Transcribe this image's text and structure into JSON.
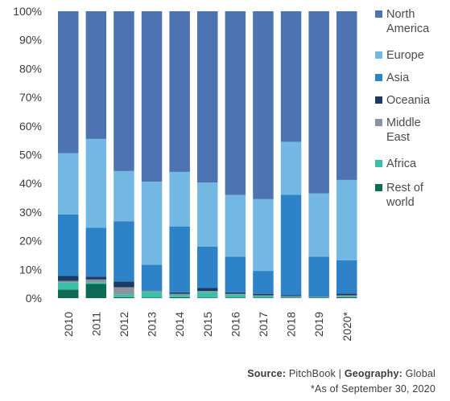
{
  "chart_data": {
    "type": "bar",
    "stacked": true,
    "percent": true,
    "categories": [
      "2010",
      "2011",
      "2012",
      "2013",
      "2014",
      "2015",
      "2016",
      "2017",
      "2018",
      "2019",
      "2020*"
    ],
    "series": [
      {
        "name": "Rest of world",
        "color": "#0d6b55",
        "values": [
          3.0,
          5.0,
          0.3,
          0.2,
          0.3,
          0.2,
          0.2,
          0.2,
          0.2,
          0.2,
          0.3
        ]
      },
      {
        "name": "Africa",
        "color": "#3cbfa8",
        "values": [
          2.5,
          0.5,
          1.0,
          2.0,
          0.8,
          2.0,
          1.0,
          0.5,
          0.3,
          0.1,
          0.3
        ]
      },
      {
        "name": "Middle East",
        "color": "#8a93a0",
        "values": [
          0.5,
          1.0,
          2.5,
          0.3,
          0.4,
          0.3,
          0.3,
          0.3,
          0.2,
          0.1,
          0.4
        ]
      },
      {
        "name": "Oceania",
        "color": "#1b3a66",
        "values": [
          1.7,
          1.0,
          2.0,
          0.1,
          0.5,
          1.0,
          0.5,
          0.5,
          0.3,
          0.1,
          0.6
        ]
      },
      {
        "name": "Asia",
        "color": "#2e82c8",
        "values": [
          21.5,
          17.0,
          21.0,
          9.0,
          23.0,
          14.5,
          12.5,
          8.0,
          35.0,
          14.0,
          11.6
        ]
      },
      {
        "name": "Europe",
        "color": "#73b7e3",
        "values": [
          21.3,
          31.0,
          17.5,
          29.0,
          19.0,
          22.3,
          21.5,
          25.0,
          18.5,
          22.0,
          28.0
        ]
      },
      {
        "name": "North America",
        "color": "#4e73b2",
        "values": [
          49.5,
          44.5,
          55.7,
          59.4,
          56.0,
          59.7,
          64.0,
          65.5,
          45.5,
          63.5,
          58.8
        ]
      }
    ],
    "ylim": [
      0,
      100
    ],
    "yticks": [
      "0%",
      "10%",
      "20%",
      "30%",
      "40%",
      "50%",
      "60%",
      "70%",
      "80%",
      "90%",
      "100%"
    ],
    "legend_position": "right",
    "legend": [
      {
        "label": "North America",
        "lines": [
          "North",
          "America"
        ],
        "color": "#4e73b2"
      },
      {
        "label": "Europe",
        "lines": [
          "Europe"
        ],
        "color": "#73b7e3"
      },
      {
        "label": "Asia",
        "lines": [
          "Asia"
        ],
        "color": "#2e82c8"
      },
      {
        "label": "Oceania",
        "lines": [
          "Oceania"
        ],
        "color": "#1b3a66"
      },
      {
        "label": "Middle East",
        "lines": [
          "Middle",
          "East"
        ],
        "color": "#8a93a0"
      },
      {
        "label": "Africa",
        "lines": [
          "Africa"
        ],
        "color": "#3cbfa8"
      },
      {
        "label": "Rest of world",
        "lines": [
          "Rest of",
          "world"
        ],
        "color": "#0d6b55"
      }
    ],
    "grid": false
  },
  "footer": {
    "source_label": "Source:",
    "source_value": "PitchBook",
    "separator": "|",
    "geography_label": "Geography:",
    "geography_value": "Global",
    "note": "*As of September 30, 2020"
  }
}
